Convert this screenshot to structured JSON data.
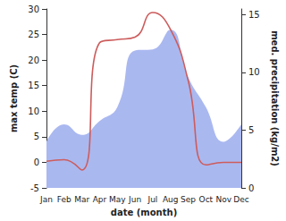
{
  "chart_data": {
    "type": "line",
    "xlabel": "date (month)",
    "ylabel": "max temp (C)",
    "y2label": "med. precipitation (kg/m2)",
    "categories": [
      "Jan",
      "Feb",
      "Mar",
      "Apr",
      "May",
      "Jun",
      "Jul",
      "Aug",
      "Sep",
      "Oct",
      "Nov",
      "Dec"
    ],
    "series": [
      {
        "name": "med. precipitation",
        "type": "area",
        "axis": "y2",
        "color": "#aab8f0",
        "values": [
          4.0,
          5.5,
          4.6,
          5.8,
          7.0,
          11.9,
          12.0,
          13.7,
          9.6,
          7.0,
          4.0,
          5.5
        ]
      },
      {
        "name": "max temp",
        "type": "line",
        "color": "#cd5c5c",
        "values": [
          0.2,
          0.5,
          -1.5,
          23.4,
          24.0,
          24.5,
          29.3,
          26.0,
          16.0,
          -0.5,
          0.0,
          0.0
        ]
      }
    ],
    "ylim": [
      -5,
      30
    ],
    "yticks": [
      -5,
      0,
      5,
      10,
      15,
      20,
      25,
      30
    ],
    "y2lim": [
      0,
      15.5
    ],
    "y2ticks": [
      0,
      5,
      10,
      15
    ],
    "grid": false
  }
}
